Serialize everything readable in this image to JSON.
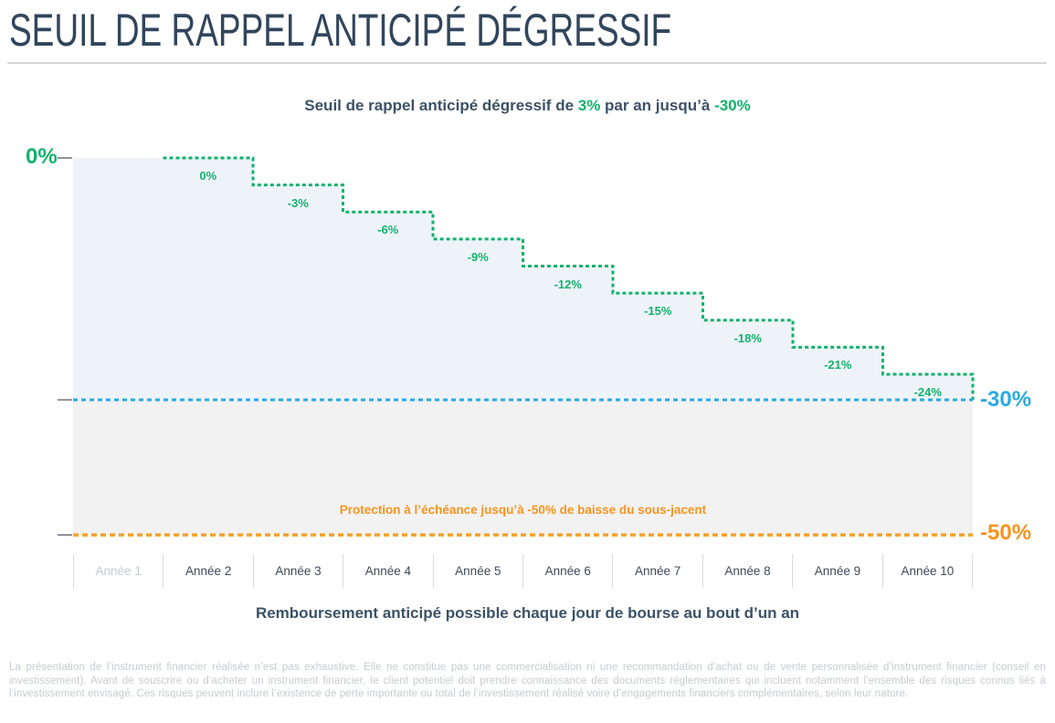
{
  "header": {
    "title": "SEUIL DE RAPPEL ANTICIPÉ DÉGRESSIF"
  },
  "subtitle": {
    "part1": "Seuil de rappel anticipé dégressif de ",
    "rate": "3%",
    "part2": " par an jusqu’à ",
    "threshold": "-30%"
  },
  "chart_data": {
    "type": "area",
    "subtype": "step-down",
    "title": "Seuil de rappel anticipé dégressif de 3% par an jusqu’à -30%",
    "categories": [
      "Année 1",
      "Année 2",
      "Année 3",
      "Année 4",
      "Année 5",
      "Année 6",
      "Année 7",
      "Année 8",
      "Année 9",
      "Année 10"
    ],
    "series": [
      {
        "name": "Seuil de rappel anticipé",
        "values": [
          null,
          0,
          -3,
          -6,
          -9,
          -12,
          -15,
          -18,
          -21,
          -24
        ],
        "point_labels": [
          "",
          "0%",
          "-3%",
          "-6%",
          "-9%",
          "-12%",
          "-15%",
          "-18%",
          "-21%",
          "-24%"
        ]
      }
    ],
    "y_axis": {
      "top_tick_label": "0%",
      "recall_floor_tick_label": "-30%",
      "protection_tick_label": "-50%",
      "range": [
        -50,
        0
      ]
    },
    "reference_lines": [
      {
        "value": -30,
        "label": "-30%",
        "style": "dashed",
        "color": "#29abe2"
      },
      {
        "value": -50,
        "label": "-50%",
        "style": "dashed",
        "color": "#f7941d"
      }
    ],
    "annotation": {
      "text": "Protection à l’échéance jusqu’à -50% de baisse du sous-jacent"
    },
    "x_axis_disabled_category": "Année 1",
    "step_per_year_pct": -3,
    "grid": false,
    "legend": false
  },
  "footnote": "Remboursement anticipé possible chaque jour de bourse au bout d’un an",
  "disclaimer": "La présentation de l’instrument financier réalisée n’est pas exhaustive. Elle ne constitue pas une commercialisation ni une recommandation d’achat ou de vente personnalisée d’instrument financier (conseil en investissement). Avant de souscrire ou d’acheter un instrument financier, le client potentiel doit prendre connaissance des documents réglementaires qui incluent notamment l’ensemble des risques connus liés à l’investissement envisagé. Ces risques peuvent inclure l’existence de perte importante ou total de l’investissement réalisé voire d’engagements financiers complémentaires, selon leur nature.",
  "colors": {
    "green": "#12b26d",
    "cyan": "#29abe2",
    "orange_text": "#f7941d",
    "orange_line": "#f5a028",
    "navy": "#3b5266",
    "fill_blue": "#eef3f8",
    "fill_gray": "#f2f2f3",
    "tick": "#90959b",
    "divider": "#d6d6d6",
    "disabled_text": "#c6cad0"
  }
}
